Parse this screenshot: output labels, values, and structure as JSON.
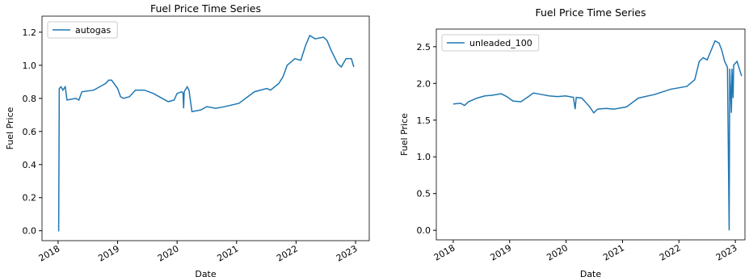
{
  "chart_data": [
    {
      "type": "line",
      "title": "Fuel Price Time Series",
      "xlabel": "Date",
      "ylabel": "Fuel Price",
      "legend": "upper left",
      "x": [
        2018.0,
        2018.01,
        2018.02,
        2018.05,
        2018.08,
        2018.12,
        2018.15,
        2018.3,
        2018.35,
        2018.4,
        2018.6,
        2018.8,
        2018.85,
        2018.9,
        2019.0,
        2019.05,
        2019.1,
        2019.2,
        2019.3,
        2019.45,
        2019.6,
        2019.75,
        2019.85,
        2019.95,
        2020.0,
        2020.08,
        2020.1,
        2020.11,
        2020.12,
        2020.17,
        2020.2,
        2020.25,
        2020.4,
        2020.5,
        2020.65,
        2020.8,
        2021.04,
        2021.3,
        2021.51,
        2021.57,
        2021.71,
        2021.78,
        2021.85,
        2021.98,
        2022.08,
        2022.16,
        2022.23,
        2022.32,
        2022.46,
        2022.52,
        2022.59,
        2022.7,
        2022.76,
        2022.84,
        2022.93,
        2022.97
      ],
      "series": [
        {
          "name": "autogas",
          "color": "#1f77b4",
          "values": [
            0.0,
            0.0,
            0.86,
            0.87,
            0.85,
            0.87,
            0.79,
            0.8,
            0.79,
            0.84,
            0.85,
            0.89,
            0.91,
            0.91,
            0.86,
            0.81,
            0.8,
            0.81,
            0.85,
            0.85,
            0.83,
            0.8,
            0.78,
            0.79,
            0.83,
            0.84,
            0.83,
            0.74,
            0.84,
            0.87,
            0.85,
            0.72,
            0.73,
            0.75,
            0.74,
            0.75,
            0.77,
            0.84,
            0.86,
            0.85,
            0.89,
            0.93,
            1.0,
            1.04,
            1.03,
            1.12,
            1.18,
            1.16,
            1.17,
            1.15,
            1.09,
            1.01,
            0.99,
            1.04,
            1.04,
            0.99
          ]
        }
      ],
      "xlim": [
        2017.73,
        2023.23
      ],
      "ylim": [
        -0.06,
        1.297
      ],
      "xticks": [
        2018,
        2019,
        2020,
        2021,
        2022,
        2023
      ],
      "yticks": [
        {
          "value": 0,
          "label": "0.0"
        },
        0.2,
        0.4,
        0.6,
        0.8,
        {
          "value": 1,
          "label": "1.0"
        },
        1.2
      ]
    },
    {
      "type": "line",
      "title": "Fuel Price Time Series",
      "xlabel": "Date",
      "ylabel": "Fuel Price",
      "legend": "upper left",
      "x": [
        2018.0,
        2018.13,
        2018.2,
        2018.27,
        2018.42,
        2018.56,
        2018.7,
        2018.85,
        2018.95,
        2019.06,
        2019.2,
        2019.35,
        2019.42,
        2019.56,
        2019.7,
        2019.85,
        2019.99,
        2020.13,
        2020.16,
        2020.18,
        2020.28,
        2020.42,
        2020.49,
        2020.56,
        2020.71,
        2020.85,
        2021.07,
        2021.28,
        2021.57,
        2021.85,
        2022.14,
        2022.28,
        2022.36,
        2022.43,
        2022.5,
        2022.57,
        2022.64,
        2022.71,
        2022.76,
        2022.81,
        2022.86,
        2022.89,
        2022.9,
        2022.93,
        2022.94,
        2022.96,
        2022.97,
        2023.03,
        2023.11
      ],
      "series": [
        {
          "name": "unleaded_100",
          "color": "#1f77b4",
          "values": [
            1.72,
            1.73,
            1.7,
            1.75,
            1.8,
            1.83,
            1.84,
            1.86,
            1.82,
            1.76,
            1.75,
            1.83,
            1.87,
            1.85,
            1.83,
            1.82,
            1.83,
            1.81,
            1.65,
            1.81,
            1.8,
            1.68,
            1.6,
            1.65,
            1.66,
            1.65,
            1.68,
            1.8,
            1.85,
            1.92,
            1.96,
            2.05,
            2.3,
            2.35,
            2.32,
            2.45,
            2.58,
            2.55,
            2.45,
            2.3,
            2.22,
            0.0,
            2.2,
            1.6,
            2.2,
            1.8,
            2.25,
            2.3,
            2.1
          ]
        }
      ],
      "xlim": [
        2017.7,
        2023.17
      ],
      "ylim": [
        -0.13,
        2.74
      ],
      "xticks": [
        2018,
        2019,
        2020,
        2021,
        2022,
        2023
      ],
      "yticks": [
        {
          "value": 0,
          "label": "0.0"
        },
        0.5,
        {
          "value": 1,
          "label": "1.0"
        },
        1.5,
        {
          "value": 2,
          "label": "2.0"
        },
        2.5
      ]
    }
  ]
}
